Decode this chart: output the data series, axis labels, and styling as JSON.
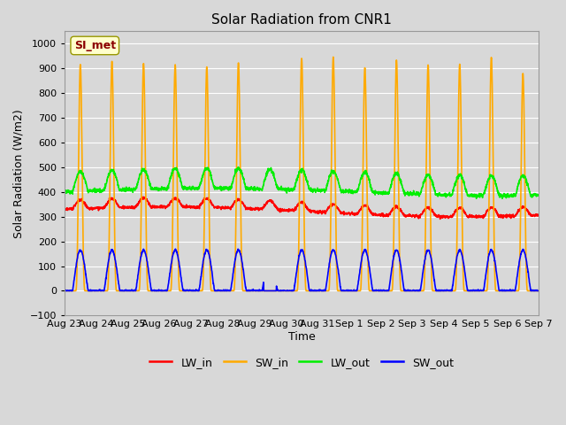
{
  "title": "Solar Radiation from CNR1",
  "xlabel": "Time",
  "ylabel": "Solar Radiation (W/m2)",
  "annotation": "SI_met",
  "ylim": [
    -100,
    1050
  ],
  "yticks": [
    -100,
    0,
    100,
    200,
    300,
    400,
    500,
    600,
    700,
    800,
    900,
    1000
  ],
  "background_color": "#d8d8d8",
  "plot_bg_color": "#d8d8d8",
  "grid_color": "#ffffff",
  "line_colors": {
    "LW_in": "#ff0000",
    "SW_in": "#ffaa00",
    "LW_out": "#00ee00",
    "SW_out": "#0000ff"
  },
  "num_days": 15,
  "tick_labels": [
    "Aug 23",
    "Aug 24",
    "Aug 25",
    "Aug 26",
    "Aug 27",
    "Aug 28",
    "Aug 29",
    "Aug 30",
    "Aug 31",
    "Sep 1",
    "Sep 2",
    "Sep 3",
    "Sep 4",
    "Sep 5",
    "Sep 6",
    "Sep 7"
  ],
  "title_fontsize": 11,
  "axis_label_fontsize": 9,
  "tick_fontsize": 8,
  "legend_fontsize": 9,
  "annotation_fontsize": 9,
  "linewidth": 1.2
}
